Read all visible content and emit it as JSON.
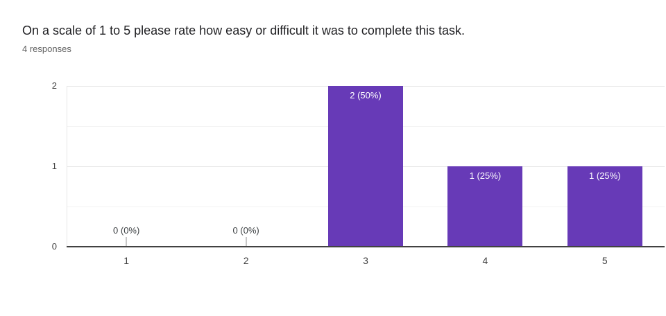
{
  "header": {
    "title": "On a scale of 1 to 5 please rate how easy or difficult it was to complete this task.",
    "subtitle": "4 responses"
  },
  "chart_data": {
    "type": "bar",
    "title": "On a scale of 1 to 5 please rate how easy or difficult it was to complete this task.",
    "subtitle": "4 responses",
    "categories": [
      "1",
      "2",
      "3",
      "4",
      "5"
    ],
    "values": [
      0,
      0,
      2,
      1,
      1
    ],
    "value_labels": [
      "0 (0%)",
      "0 (0%)",
      "2 (50%)",
      "1 (25%)",
      "1 (25%)"
    ],
    "ylim": [
      0,
      2
    ],
    "yticks": [
      0,
      1,
      2
    ],
    "minor_grid_step": 0.5,
    "grid": true,
    "legend": "none",
    "xlabel": "",
    "ylabel": ""
  },
  "colors": {
    "accent": "#673ab7",
    "bar": "#673ab7",
    "bar_label_inside": "#ffffff",
    "bar_label_zero": "#3c4043",
    "axis_line": "#424242",
    "grid_major": "#e6e6e6",
    "grid_minor": "#f3f3f3",
    "tick_stem": "#c7c7c7",
    "title_text": "#212124",
    "subtitle_text": "#616161",
    "axis_label_text": "#424242"
  }
}
